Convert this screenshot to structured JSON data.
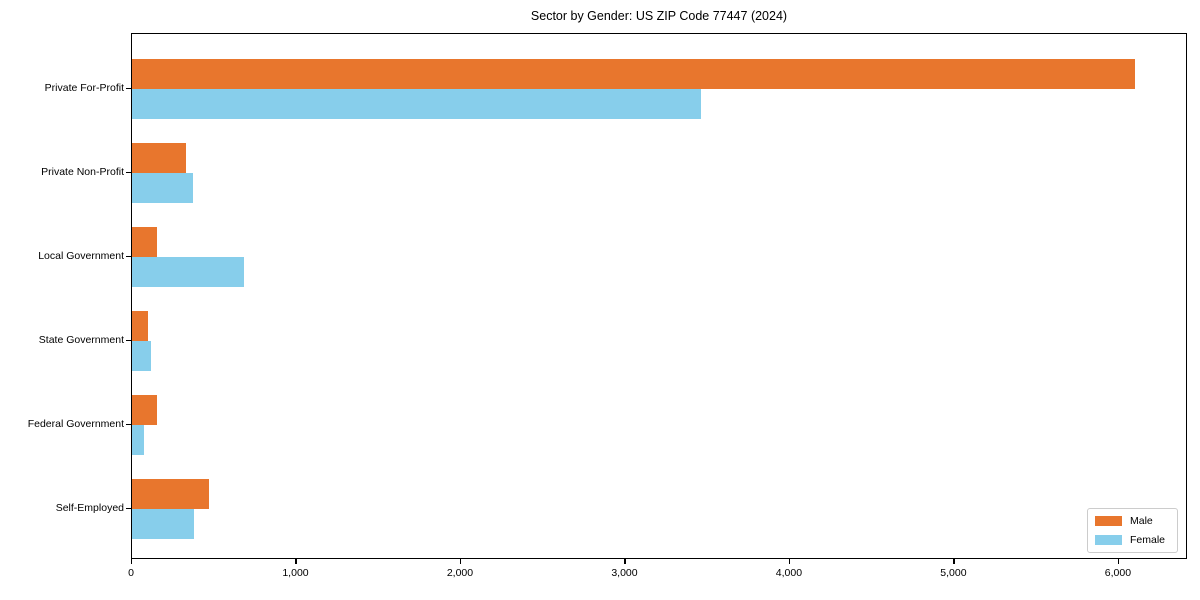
{
  "chart_data": {
    "type": "bar",
    "orientation": "horizontal",
    "title": "Sector by Gender: US ZIP Code 77447 (2024)",
    "categories": [
      "Private For-Profit",
      "Private Non-Profit",
      "Local Government",
      "State Government",
      "Federal Government",
      "Self-Employed"
    ],
    "series": [
      {
        "name": "Male",
        "color": "#E8762D",
        "values": [
          6100,
          330,
          150,
          100,
          150,
          470
        ]
      },
      {
        "name": "Female",
        "color": "#87CEEB",
        "values": [
          3460,
          370,
          680,
          115,
          75,
          375
        ]
      }
    ],
    "xlabel": "",
    "ylabel": "",
    "xlim": [
      0,
      6420
    ],
    "x_ticks": [
      0,
      1000,
      2000,
      3000,
      4000,
      5000,
      6000
    ],
    "x_tick_labels": [
      "0",
      "1,000",
      "2,000",
      "3,000",
      "4,000",
      "5,000",
      "6,000"
    ],
    "grid": false,
    "legend": {
      "position": "lower-right",
      "entries": [
        "Male",
        "Female"
      ]
    }
  }
}
